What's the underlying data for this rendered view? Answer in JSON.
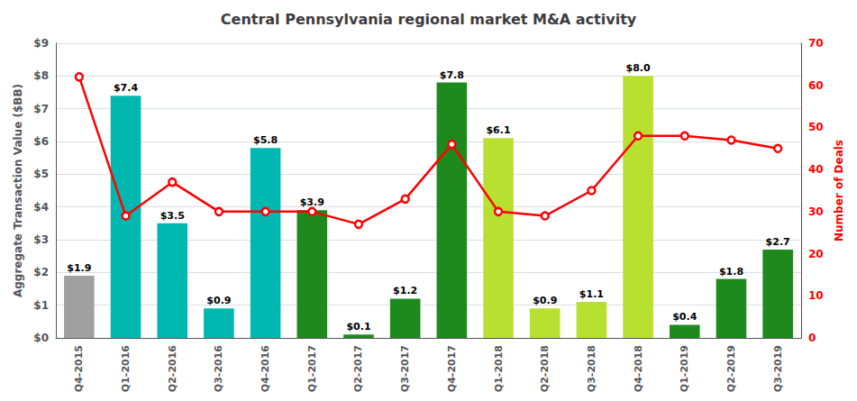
{
  "chart_data": {
    "type": "bar",
    "title": "Central Pennsylvania regional market M&A activity",
    "categories": [
      "Q4-2015",
      "Q1-2016",
      "Q2-2016",
      "Q3-2016",
      "Q4-2016",
      "Q1-2017",
      "Q2-2017",
      "Q3-2017",
      "Q4-2017",
      "Q1-2018",
      "Q2-2018",
      "Q3-2018",
      "Q4-2018",
      "Q1-2019",
      "Q2-2019",
      "Q3-2019"
    ],
    "ylabel": "Aggregate Transaction Value ($BB)",
    "y2label": "Number of Deals",
    "ylim": [
      0,
      9
    ],
    "yticks": [
      {
        "value": 0,
        "label": "$0"
      },
      {
        "value": 1,
        "label": "$1"
      },
      {
        "value": 2,
        "label": "$2"
      },
      {
        "value": 3,
        "label": "$3"
      },
      {
        "value": 4,
        "label": "$4"
      },
      {
        "value": 5,
        "label": "$5"
      },
      {
        "value": 6,
        "label": "$6"
      },
      {
        "value": 7,
        "label": "$7"
      },
      {
        "value": 8,
        "label": "$8"
      },
      {
        "value": 9,
        "label": "$9"
      }
    ],
    "y2lim": [
      0,
      70
    ],
    "y2ticks": [
      0,
      10,
      20,
      30,
      40,
      50,
      60,
      70
    ],
    "grid": true,
    "series": [
      {
        "type": "bar",
        "values": [
          1.9,
          7.4,
          3.5,
          0.9,
          5.8,
          3.9,
          0.1,
          1.2,
          7.8,
          6.1,
          0.9,
          1.1,
          8.0,
          0.4,
          1.8,
          2.7
        ],
        "value_labels": [
          "$1.9",
          "$7.4",
          "$3.5",
          "$0.9",
          "$5.8",
          "$3.9",
          "$0.1",
          "$1.2",
          "$7.8",
          "$6.1",
          "$0.9",
          "$1.1",
          "$8.0",
          "$0.4",
          "$1.8",
          "$2.7"
        ],
        "data_labels": true,
        "colors": [
          "#a0a0a0",
          "#00b8b0",
          "#00b8b0",
          "#00b8b0",
          "#00b8b0",
          "#1e8a1e",
          "#1e8a1e",
          "#1e8a1e",
          "#1e8a1e",
          "#b8e030",
          "#b8e030",
          "#b8e030",
          "#b8e030",
          "#1e8a1e",
          "#1e8a1e",
          "#1e8a1e"
        ]
      },
      {
        "type": "line",
        "axis": "y2",
        "color": "#ff0000",
        "marker": "circle",
        "values": [
          62,
          29,
          37,
          30,
          30,
          30,
          27,
          33,
          46,
          30,
          29,
          35,
          48,
          48,
          47,
          45
        ]
      }
    ]
  }
}
